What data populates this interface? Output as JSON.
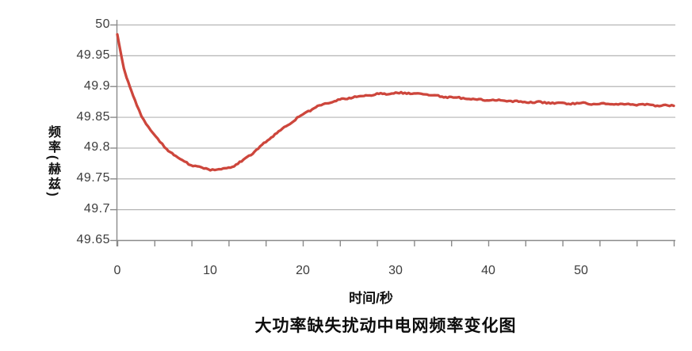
{
  "chart_data": {
    "type": "line",
    "title": "大功率缺失扰动中电网频率变化图",
    "xlabel": "时间/秒",
    "ylabel": "频率(赫兹)",
    "xlim": [
      0,
      60.3
    ],
    "ylim": [
      49.65,
      50
    ],
    "x_ticks": [
      0,
      10,
      20,
      30,
      40,
      50
    ],
    "y_ticks": [
      50,
      49.95,
      49.9,
      49.85,
      49.8,
      49.75,
      49.7,
      49.65
    ],
    "minor_x_tick_step": 4,
    "grid": true,
    "legend_position": "none",
    "colors": {
      "line": "#cd463c",
      "gridline": "#b5b5b5",
      "axis": "#8a8a8a",
      "tick_text": "#3d3d3d",
      "title_text": "#0d0d0d"
    },
    "series": [
      {
        "name": "电网频率",
        "x": [
          0,
          0.2,
          0.45,
          0.7,
          1.0,
          1.35,
          1.7,
          2.1,
          2.6,
          3.1,
          3.6,
          4.1,
          4.6,
          5.1,
          5.7,
          6.3,
          7.0,
          7.7,
          8.4,
          9.1,
          9.8,
          10.5,
          11.2,
          12.0,
          12.8,
          13.6,
          14.4,
          15.2,
          16.0,
          16.8,
          17.6,
          18.4,
          19.2,
          20.0,
          20.8,
          21.6,
          22.4,
          23.2,
          24.0,
          25.0,
          26.0,
          27.0,
          28.0,
          29.0,
          30.0,
          31.0,
          32.0,
          33.0,
          34.0,
          35.0,
          36.0,
          37.5,
          39.0,
          40.5,
          42.0,
          43.5,
          45.0,
          46.5,
          48.0,
          50.0,
          52.0,
          54.0,
          56.0,
          58.0,
          60.0
        ],
        "y": [
          49.984,
          49.968,
          49.948,
          49.93,
          49.914,
          49.899,
          49.884,
          49.869,
          49.852,
          49.839,
          49.828,
          49.818,
          49.81,
          49.801,
          49.793,
          49.786,
          49.78,
          49.774,
          49.77,
          49.767,
          49.765,
          49.764,
          49.764,
          49.767,
          49.772,
          49.78,
          49.789,
          49.799,
          49.809,
          49.819,
          49.828,
          49.837,
          49.846,
          49.854,
          49.861,
          49.867,
          49.871,
          49.875,
          49.878,
          49.881,
          49.883,
          49.885,
          49.887,
          49.888,
          49.889,
          49.889,
          49.888,
          49.887,
          49.885,
          49.883,
          49.882,
          49.88,
          49.878,
          49.877,
          49.876,
          49.875,
          49.874,
          49.873,
          49.872,
          49.872,
          49.871,
          49.871,
          49.87,
          49.869,
          49.868
        ]
      }
    ]
  }
}
